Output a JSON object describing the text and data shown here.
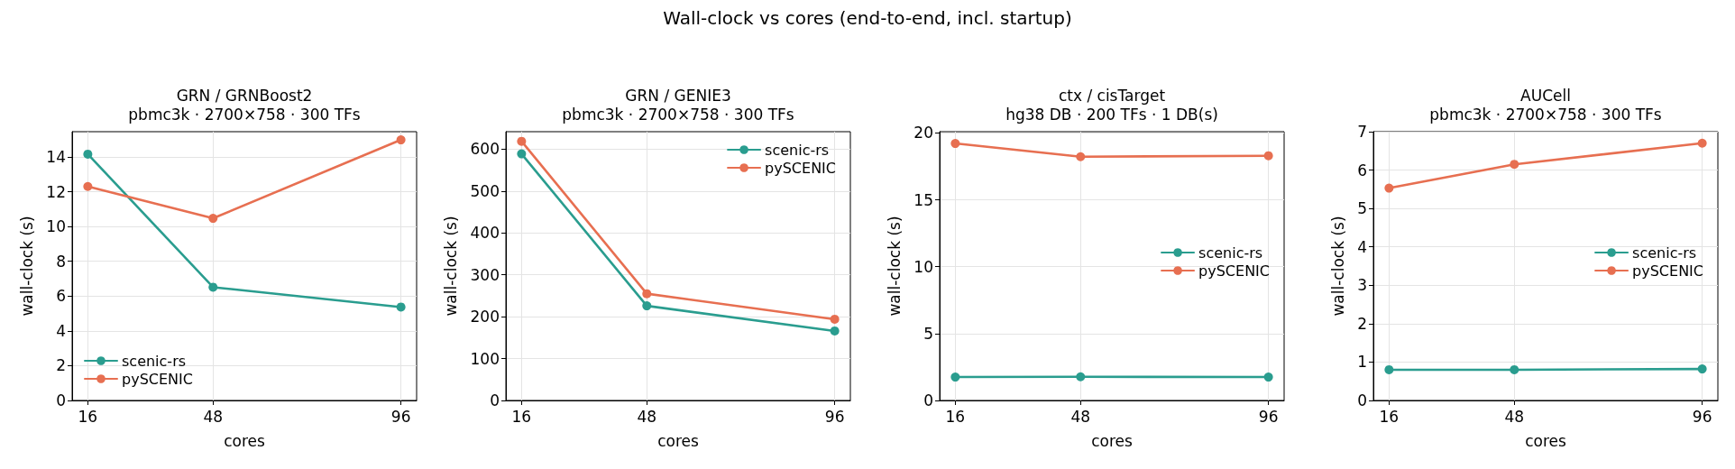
{
  "chart_data": [
    {
      "type": "line",
      "title": "GRN / GRNBoost2",
      "subtitle": "pbmc3k · 2700×758 · 300 TFs",
      "xlabel": "cores",
      "ylabel": "wall-clock (s)",
      "annotations": [
        "Wall-clock vs cores (end-to-end, incl. startup)"
      ],
      "x": [
        16,
        48,
        96
      ],
      "series": [
        {
          "name": "scenic-rs",
          "color": "#2a9d8f",
          "values": [
            14.16,
            6.51,
            5.37
          ]
        },
        {
          "name": "pySCENIC",
          "color": "#e76f51",
          "values": [
            12.3,
            10.47,
            14.98
          ]
        }
      ],
      "xlim": [
        12,
        100
      ],
      "xticks": [
        16,
        48,
        96
      ],
      "ylim": [
        0,
        15.45
      ],
      "yticks": [
        0,
        2,
        4,
        6,
        8,
        10,
        12,
        14
      ],
      "grid": true,
      "legend": "bottom left",
      "marker": "circle",
      "line_style": "solid"
    },
    {
      "type": "line",
      "title": "GRN / GENIE3",
      "subtitle": "pbmc3k · 2700×758 · 300 TFs",
      "xlabel": "cores",
      "ylabel": "wall-clock (s)",
      "x": [
        16,
        48,
        96
      ],
      "series": [
        {
          "name": "scenic-rs",
          "color": "#2a9d8f",
          "values": [
            589,
            226,
            166
          ]
        },
        {
          "name": "pySCENIC",
          "color": "#e76f51",
          "values": [
            619,
            255,
            194
          ]
        }
      ],
      "xlim": [
        12,
        100
      ],
      "xticks": [
        16,
        48,
        96
      ],
      "ylim": [
        0,
        642
      ],
      "yticks": [
        0,
        100,
        200,
        300,
        400,
        500,
        600
      ],
      "grid": true,
      "legend": "top right",
      "marker": "circle",
      "line_style": "solid"
    },
    {
      "type": "line",
      "title": "ctx / cisTarget",
      "subtitle": "hg38 DB · 200 TFs · 1 DB(s)",
      "xlabel": "cores",
      "ylabel": "wall-clock (s)",
      "x": [
        16,
        48,
        96
      ],
      "series": [
        {
          "name": "scenic-rs",
          "color": "#2a9d8f",
          "values": [
            1.75,
            1.77,
            1.75
          ]
        },
        {
          "name": "pySCENIC",
          "color": "#e76f51",
          "values": [
            19.22,
            18.23,
            18.3
          ]
        }
      ],
      "xlim": [
        12,
        100
      ],
      "xticks": [
        16,
        48,
        96
      ],
      "ylim": [
        0,
        20.1
      ],
      "yticks": [
        0,
        5,
        10,
        15,
        20
      ],
      "grid": true,
      "legend": "right",
      "marker": "circle",
      "line_style": "solid"
    },
    {
      "type": "line",
      "title": "AUCell",
      "subtitle": "pbmc3k · 2700×758 · 300 TFs",
      "xlabel": "cores",
      "ylabel": "wall-clock (s)",
      "x": [
        16,
        48,
        96
      ],
      "series": [
        {
          "name": "scenic-rs",
          "color": "#2a9d8f",
          "values": [
            0.8,
            0.8,
            0.82
          ]
        },
        {
          "name": "pySCENIC",
          "color": "#e76f51",
          "values": [
            5.53,
            6.15,
            6.7
          ]
        }
      ],
      "xlim": [
        12,
        100
      ],
      "xticks": [
        16,
        48,
        96
      ],
      "ylim": [
        0,
        7
      ],
      "yticks": [
        0,
        1,
        2,
        3,
        4,
        5,
        6,
        7
      ],
      "grid": true,
      "legend": "right",
      "marker": "circle",
      "line_style": "solid"
    }
  ]
}
